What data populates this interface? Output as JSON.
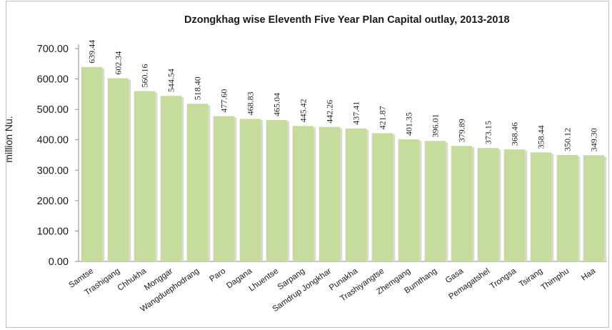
{
  "chart_data": {
    "type": "bar",
    "title": "Dzongkhag wise Eleventh Five Year Plan Capital outlay, 2013-2018",
    "ylabel": "million Nu.",
    "xlabel": "",
    "ylim": [
      0,
      700
    ],
    "yticks": [
      "0.00",
      "100.00",
      "200.00",
      "300.00",
      "400.00",
      "500.00",
      "600.00",
      "700.00"
    ],
    "grid": false,
    "bar_color": "#c6dc9c",
    "categories": [
      "Samtse",
      "Trashigang",
      "Chhukha",
      "Monggar",
      "Wangduephodrang",
      "Paro",
      "Dagana",
      "Lhuentse",
      "Sarpang",
      "Samdrup Jongkhar",
      "Punakha",
      "Trashiyangtse",
      "Zhemgang",
      "Bumthang",
      "Gasa",
      "Pemagatshel",
      "Trongsa",
      "Tsirang",
      "Thimphu",
      "Haa"
    ],
    "values": [
      639.44,
      602.34,
      560.16,
      544.54,
      518.4,
      477.6,
      468.83,
      465.04,
      445.42,
      442.26,
      437.41,
      421.87,
      401.35,
      396.01,
      379.89,
      373.15,
      368.46,
      358.44,
      350.12,
      349.3
    ],
    "data_labels": [
      "639.44",
      "602.34",
      "560.16",
      "544.54",
      "518.40",
      "477.60",
      "468.83",
      "465.04",
      "445.42",
      "442.26",
      "437.41",
      "421.87",
      "401.35",
      "396.01",
      "379.89",
      "373.15",
      "368.46",
      "358.44",
      "350.12",
      "349.30"
    ]
  }
}
